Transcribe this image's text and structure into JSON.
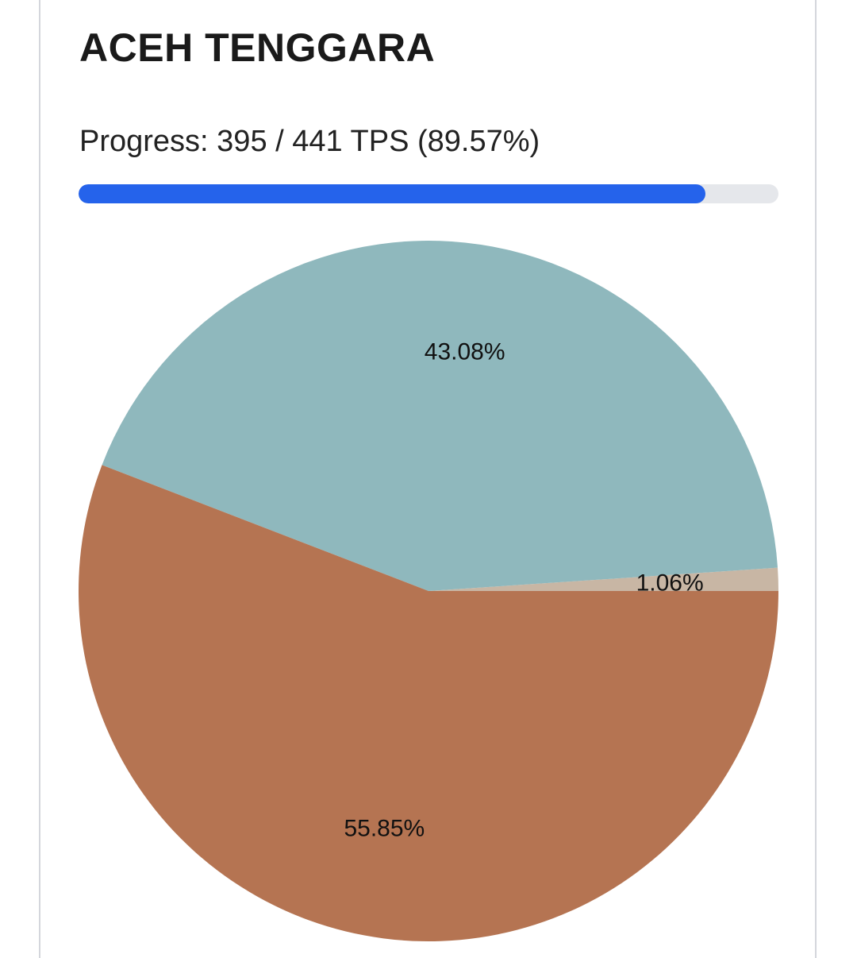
{
  "header": {
    "title": "ACEH TENGGARA"
  },
  "progress": {
    "text": "Progress: 395 / 441 TPS (89.57%)",
    "done": 395,
    "total": 441,
    "percent": 89.57,
    "color": "#2563eb",
    "track_color": "#e5e7eb"
  },
  "chart_data": {
    "type": "pie",
    "title": "",
    "start_angle_deg": 0,
    "direction": "counterclockwise",
    "slices": [
      {
        "value": 1.06,
        "label": "1.06%",
        "color": "#c8b6a4"
      },
      {
        "value": 43.08,
        "label": "43.08%",
        "color": "#8fb8bd"
      },
      {
        "value": 55.85,
        "label": "55.85%",
        "color": "#b57452"
      }
    ]
  }
}
